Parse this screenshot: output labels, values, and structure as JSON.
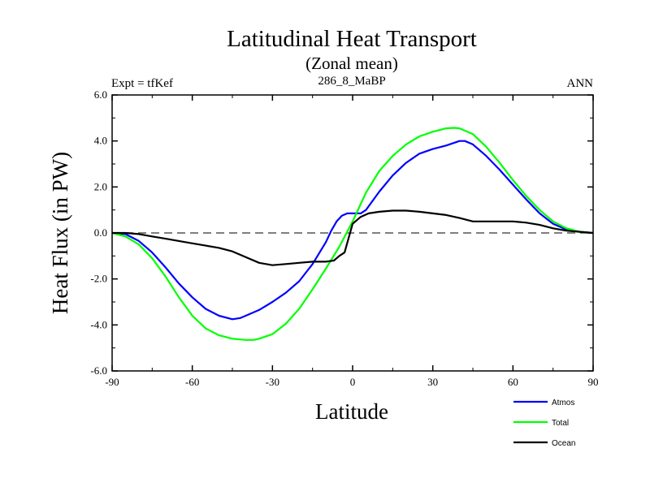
{
  "chart_data": {
    "type": "line",
    "title": "Latitudinal Heat Transport",
    "subtitle": "(Zonal mean)",
    "left_label": "Expt = tfKef",
    "center_label": "286_8_MaBP",
    "right_label": "ANN",
    "xlabel": "Latitude",
    "ylabel": "Heat Flux (in PW)",
    "xlim": [
      -90,
      90
    ],
    "ylim": [
      -6,
      6
    ],
    "xticks": [
      -90,
      -60,
      -30,
      0,
      30,
      60,
      90
    ],
    "xtick_labels": [
      "-90",
      "-60",
      "-30",
      "0",
      "30",
      "60",
      "90"
    ],
    "yticks": [
      -6,
      -4,
      -2,
      0,
      2,
      4,
      6
    ],
    "ytick_labels": [
      "-6.0",
      "-4.0",
      "-2.0",
      "0.0",
      "2.0",
      "4.0",
      "6.0"
    ],
    "grid": false,
    "zero_line": true,
    "legend_position": "bottom-right",
    "series": [
      {
        "name": "Atmos",
        "color": "#0000ff",
        "x": [
          -90,
          -85,
          -80,
          -75,
          -70,
          -65,
          -60,
          -55,
          -50,
          -45,
          -42,
          -40,
          -35,
          -30,
          -25,
          -20,
          -15,
          -10,
          -8,
          -6,
          -4,
          -2,
          0,
          3,
          5,
          10,
          15,
          20,
          25,
          30,
          35,
          40,
          42,
          45,
          50,
          55,
          60,
          65,
          70,
          75,
          80,
          85,
          90
        ],
        "y": [
          0.0,
          -0.05,
          -0.35,
          -0.85,
          -1.5,
          -2.2,
          -2.8,
          -3.3,
          -3.6,
          -3.75,
          -3.7,
          -3.6,
          -3.35,
          -3.0,
          -2.6,
          -2.1,
          -1.35,
          -0.4,
          0.1,
          0.5,
          0.75,
          0.85,
          0.85,
          0.85,
          1.0,
          1.8,
          2.5,
          3.05,
          3.45,
          3.65,
          3.8,
          4.0,
          4.0,
          3.85,
          3.35,
          2.75,
          2.1,
          1.45,
          0.85,
          0.4,
          0.15,
          0.05,
          0.0
        ]
      },
      {
        "name": "Total",
        "color": "#00ff00",
        "x": [
          -90,
          -85,
          -80,
          -75,
          -70,
          -65,
          -60,
          -55,
          -50,
          -45,
          -40,
          -37,
          -35,
          -30,
          -25,
          -20,
          -15,
          -10,
          -5,
          0,
          5,
          10,
          15,
          20,
          25,
          30,
          35,
          38,
          40,
          45,
          50,
          55,
          60,
          65,
          70,
          75,
          80,
          85,
          90
        ],
        "y": [
          0.0,
          -0.15,
          -0.5,
          -1.1,
          -1.9,
          -2.8,
          -3.6,
          -4.15,
          -4.45,
          -4.6,
          -4.65,
          -4.65,
          -4.6,
          -4.4,
          -3.95,
          -3.3,
          -2.45,
          -1.55,
          -0.6,
          0.5,
          1.75,
          2.7,
          3.35,
          3.85,
          4.2,
          4.4,
          4.55,
          4.57,
          4.55,
          4.3,
          3.75,
          3.05,
          2.3,
          1.6,
          1.0,
          0.5,
          0.2,
          0.05,
          0.0
        ]
      },
      {
        "name": "Ocean",
        "color": "#000000",
        "x": [
          -90,
          -85,
          -80,
          -75,
          -70,
          -65,
          -60,
          -55,
          -50,
          -45,
          -40,
          -35,
          -30,
          -25,
          -20,
          -15,
          -10,
          -7,
          -5,
          -3,
          0,
          3,
          6,
          10,
          15,
          20,
          25,
          30,
          35,
          40,
          45,
          50,
          55,
          60,
          65,
          70,
          75,
          80,
          85,
          90
        ],
        "y": [
          0.0,
          0.0,
          -0.05,
          -0.15,
          -0.25,
          -0.35,
          -0.45,
          -0.55,
          -0.65,
          -0.8,
          -1.05,
          -1.3,
          -1.4,
          -1.35,
          -1.3,
          -1.25,
          -1.25,
          -1.2,
          -1.0,
          -0.85,
          0.4,
          0.7,
          0.85,
          0.92,
          0.97,
          0.97,
          0.92,
          0.85,
          0.78,
          0.65,
          0.5,
          0.5,
          0.5,
          0.5,
          0.45,
          0.35,
          0.2,
          0.1,
          0.05,
          0.0
        ]
      }
    ]
  }
}
